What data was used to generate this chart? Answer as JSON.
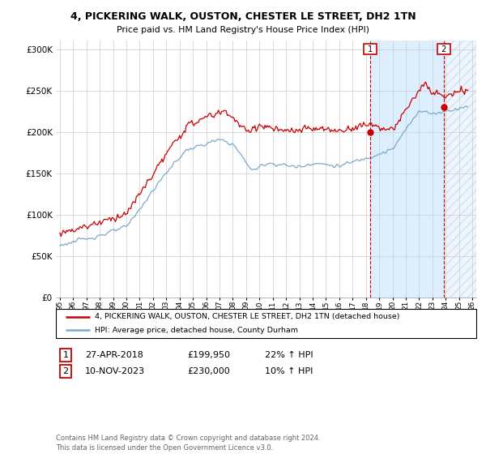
{
  "title": "4, PICKERING WALK, OUSTON, CHESTER LE STREET, DH2 1TN",
  "subtitle": "Price paid vs. HM Land Registry's House Price Index (HPI)",
  "legend_line1": "4, PICKERING WALK, OUSTON, CHESTER LE STREET, DH2 1TN (detached house)",
  "legend_line2": "HPI: Average price, detached house, County Durham",
  "annotation1_label": "1",
  "annotation1_date": "27-APR-2018",
  "annotation1_price": "£199,950",
  "annotation1_hpi": "22% ↑ HPI",
  "annotation2_label": "2",
  "annotation2_date": "10-NOV-2023",
  "annotation2_price": "£230,000",
  "annotation2_hpi": "10% ↑ HPI",
  "footer": "Contains HM Land Registry data © Crown copyright and database right 2024.\nThis data is licensed under the Open Government Licence v3.0.",
  "red_color": "#cc0000",
  "blue_color": "#7aaac8",
  "shade_color": "#ddeeff",
  "annotation_color": "#cc0000",
  "background_color": "#ffffff",
  "grid_color": "#cccccc",
  "ylim": [
    0,
    310000
  ],
  "yticks": [
    0,
    50000,
    100000,
    150000,
    200000,
    250000,
    300000
  ],
  "sale1_x": 2018.33,
  "sale1_y": 199950,
  "sale2_x": 2023.86,
  "sale2_y": 230000,
  "xmin": 1994.7,
  "xmax": 2026.3
}
